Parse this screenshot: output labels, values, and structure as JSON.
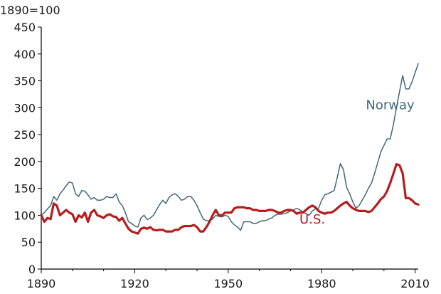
{
  "chart_data": {
    "type": "line",
    "title": "",
    "unit_label": "1890=100",
    "xlabel": "",
    "ylabel": "",
    "xlim": [
      1890,
      2011
    ],
    "ylim": [
      0,
      450
    ],
    "grid": false,
    "x_ticks": [
      1890,
      1920,
      1950,
      1980,
      2010
    ],
    "y_ticks": [
      0,
      50,
      100,
      150,
      200,
      250,
      300,
      350,
      400,
      450
    ],
    "series": [
      {
        "name": "Norway",
        "color": "#3f6878",
        "label_anchor": [
          2002,
          297
        ],
        "points": [
          [
            1890,
            100
          ],
          [
            1891,
            105
          ],
          [
            1892,
            112
          ],
          [
            1893,
            118
          ],
          [
            1894,
            135
          ],
          [
            1895,
            128
          ],
          [
            1896,
            140
          ],
          [
            1897,
            147
          ],
          [
            1898,
            155
          ],
          [
            1899,
            162
          ],
          [
            1900,
            160
          ],
          [
            1901,
            140
          ],
          [
            1902,
            135
          ],
          [
            1903,
            146
          ],
          [
            1904,
            145
          ],
          [
            1905,
            138
          ],
          [
            1906,
            130
          ],
          [
            1907,
            133
          ],
          [
            1908,
            128
          ],
          [
            1909,
            128
          ],
          [
            1910,
            130
          ],
          [
            1911,
            135
          ],
          [
            1912,
            133
          ],
          [
            1913,
            133
          ],
          [
            1914,
            140
          ],
          [
            1915,
            125
          ],
          [
            1916,
            118
          ],
          [
            1917,
            105
          ],
          [
            1918,
            88
          ],
          [
            1919,
            85
          ],
          [
            1920,
            80
          ],
          [
            1921,
            78
          ],
          [
            1922,
            95
          ],
          [
            1923,
            100
          ],
          [
            1924,
            92
          ],
          [
            1925,
            95
          ],
          [
            1926,
            100
          ],
          [
            1927,
            110
          ],
          [
            1928,
            120
          ],
          [
            1929,
            128
          ],
          [
            1930,
            122
          ],
          [
            1931,
            133
          ],
          [
            1932,
            138
          ],
          [
            1933,
            140
          ],
          [
            1934,
            135
          ],
          [
            1935,
            128
          ],
          [
            1936,
            130
          ],
          [
            1937,
            135
          ],
          [
            1938,
            135
          ],
          [
            1939,
            128
          ],
          [
            1940,
            118
          ],
          [
            1941,
            105
          ],
          [
            1942,
            93
          ],
          [
            1943,
            90
          ],
          [
            1944,
            90
          ],
          [
            1945,
            93
          ],
          [
            1946,
            100
          ],
          [
            1947,
            98
          ],
          [
            1948,
            97
          ],
          [
            1949,
            100
          ],
          [
            1950,
            98
          ],
          [
            1951,
            88
          ],
          [
            1952,
            82
          ],
          [
            1953,
            78
          ],
          [
            1954,
            72
          ],
          [
            1955,
            88
          ],
          [
            1956,
            88
          ],
          [
            1957,
            88
          ],
          [
            1958,
            85
          ],
          [
            1959,
            85
          ],
          [
            1960,
            88
          ],
          [
            1961,
            90
          ],
          [
            1962,
            90
          ],
          [
            1963,
            93
          ],
          [
            1964,
            95
          ],
          [
            1965,
            100
          ],
          [
            1966,
            102
          ],
          [
            1967,
            102
          ],
          [
            1968,
            103
          ],
          [
            1969,
            105
          ],
          [
            1970,
            108
          ],
          [
            1971,
            110
          ],
          [
            1972,
            113
          ],
          [
            1973,
            110
          ],
          [
            1974,
            106
          ],
          [
            1975,
            103
          ],
          [
            1976,
            100
          ],
          [
            1977,
            108
          ],
          [
            1978,
            112
          ],
          [
            1979,
            113
          ],
          [
            1980,
            128
          ],
          [
            1981,
            138
          ],
          [
            1982,
            140
          ],
          [
            1983,
            143
          ],
          [
            1984,
            146
          ],
          [
            1985,
            170
          ],
          [
            1986,
            196
          ],
          [
            1987,
            185
          ],
          [
            1988,
            152
          ],
          [
            1989,
            140
          ],
          [
            1990,
            125
          ],
          [
            1991,
            113
          ],
          [
            1992,
            118
          ],
          [
            1993,
            128
          ],
          [
            1994,
            138
          ],
          [
            1995,
            150
          ],
          [
            1996,
            160
          ],
          [
            1997,
            178
          ],
          [
            1998,
            198
          ],
          [
            1999,
            218
          ],
          [
            2000,
            230
          ],
          [
            2001,
            242
          ],
          [
            2002,
            242
          ],
          [
            2003,
            268
          ],
          [
            2004,
            300
          ],
          [
            2005,
            330
          ],
          [
            2006,
            360
          ],
          [
            2007,
            335
          ],
          [
            2008,
            335
          ],
          [
            2009,
            348
          ],
          [
            2010,
            365
          ],
          [
            2011,
            382
          ]
        ]
      },
      {
        "name": "U.S.",
        "color": "#b71c1c",
        "label_anchor": [
          1977,
          85
        ],
        "points": [
          [
            1890,
            100
          ],
          [
            1891,
            88
          ],
          [
            1892,
            95
          ],
          [
            1893,
            93
          ],
          [
            1894,
            122
          ],
          [
            1895,
            118
          ],
          [
            1896,
            100
          ],
          [
            1897,
            105
          ],
          [
            1898,
            110
          ],
          [
            1899,
            105
          ],
          [
            1900,
            102
          ],
          [
            1901,
            88
          ],
          [
            1902,
            100
          ],
          [
            1903,
            96
          ],
          [
            1904,
            105
          ],
          [
            1905,
            88
          ],
          [
            1906,
            105
          ],
          [
            1907,
            110
          ],
          [
            1908,
            100
          ],
          [
            1909,
            98
          ],
          [
            1910,
            95
          ],
          [
            1911,
            100
          ],
          [
            1912,
            102
          ],
          [
            1913,
            98
          ],
          [
            1914,
            97
          ],
          [
            1915,
            90
          ],
          [
            1916,
            95
          ],
          [
            1917,
            85
          ],
          [
            1918,
            75
          ],
          [
            1919,
            70
          ],
          [
            1920,
            68
          ],
          [
            1921,
            66
          ],
          [
            1922,
            75
          ],
          [
            1923,
            77
          ],
          [
            1924,
            75
          ],
          [
            1925,
            78
          ],
          [
            1926,
            73
          ],
          [
            1927,
            72
          ],
          [
            1928,
            73
          ],
          [
            1929,
            73
          ],
          [
            1930,
            70
          ],
          [
            1931,
            70
          ],
          [
            1932,
            70
          ],
          [
            1933,
            73
          ],
          [
            1934,
            73
          ],
          [
            1935,
            78
          ],
          [
            1936,
            80
          ],
          [
            1937,
            80
          ],
          [
            1938,
            80
          ],
          [
            1939,
            82
          ],
          [
            1940,
            78
          ],
          [
            1941,
            70
          ],
          [
            1942,
            70
          ],
          [
            1943,
            78
          ],
          [
            1944,
            88
          ],
          [
            1945,
            100
          ],
          [
            1946,
            110
          ],
          [
            1947,
            100
          ],
          [
            1948,
            100
          ],
          [
            1949,
            105
          ],
          [
            1950,
            105
          ],
          [
            1951,
            105
          ],
          [
            1952,
            113
          ],
          [
            1953,
            115
          ],
          [
            1954,
            115
          ],
          [
            1955,
            115
          ],
          [
            1956,
            113
          ],
          [
            1957,
            113
          ],
          [
            1958,
            110
          ],
          [
            1959,
            110
          ],
          [
            1960,
            108
          ],
          [
            1961,
            108
          ],
          [
            1962,
            108
          ],
          [
            1963,
            110
          ],
          [
            1964,
            110
          ],
          [
            1965,
            108
          ],
          [
            1966,
            105
          ],
          [
            1967,
            105
          ],
          [
            1968,
            108
          ],
          [
            1969,
            110
          ],
          [
            1970,
            110
          ],
          [
            1971,
            108
          ],
          [
            1972,
            103
          ],
          [
            1973,
            105
          ],
          [
            1974,
            105
          ],
          [
            1975,
            110
          ],
          [
            1976,
            115
          ],
          [
            1977,
            118
          ],
          [
            1978,
            115
          ],
          [
            1979,
            108
          ],
          [
            1980,
            105
          ],
          [
            1981,
            103
          ],
          [
            1982,
            105
          ],
          [
            1983,
            105
          ],
          [
            1984,
            108
          ],
          [
            1985,
            113
          ],
          [
            1986,
            118
          ],
          [
            1987,
            122
          ],
          [
            1988,
            125
          ],
          [
            1989,
            118
          ],
          [
            1990,
            113
          ],
          [
            1991,
            110
          ],
          [
            1992,
            108
          ],
          [
            1993,
            108
          ],
          [
            1994,
            108
          ],
          [
            1995,
            106
          ],
          [
            1996,
            108
          ],
          [
            1997,
            115
          ],
          [
            1998,
            122
          ],
          [
            1999,
            130
          ],
          [
            2000,
            135
          ],
          [
            2001,
            145
          ],
          [
            2002,
            160
          ],
          [
            2003,
            177
          ],
          [
            2004,
            195
          ],
          [
            2005,
            193
          ],
          [
            2006,
            178
          ],
          [
            2007,
            132
          ],
          [
            2008,
            132
          ],
          [
            2009,
            128
          ],
          [
            2010,
            122
          ],
          [
            2011,
            120
          ]
        ]
      }
    ]
  }
}
